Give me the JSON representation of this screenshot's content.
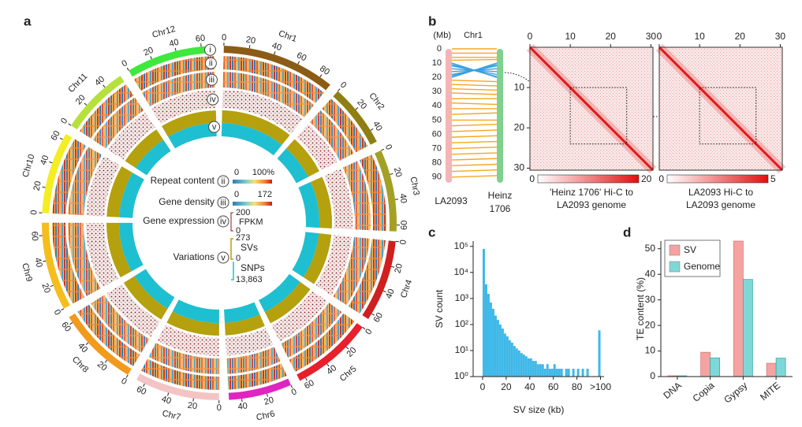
{
  "chart_data": [
    {
      "type": "circos",
      "panel": "a",
      "chromosomes": [
        {
          "name": "Chr1",
          "length": 90,
          "color": "#8c5c16",
          "ticks": [
            0,
            20,
            40,
            60,
            80
          ]
        },
        {
          "name": "Chr2",
          "length": 50,
          "color": "#8f7f12",
          "ticks": [
            0,
            20,
            40
          ]
        },
        {
          "name": "Chr3",
          "length": 65,
          "color": "#a4a026",
          "ticks": [
            0,
            20,
            40,
            60
          ]
        },
        {
          "name": "Chr4",
          "length": 65,
          "color": "#cf1f1f",
          "ticks": [
            0,
            20,
            40,
            60
          ]
        },
        {
          "name": "Chr5",
          "length": 65,
          "color": "#e8202c",
          "ticks": [
            0,
            20,
            40,
            60
          ]
        },
        {
          "name": "Chr6",
          "length": 50,
          "color": "#e024c0",
          "ticks": [
            0,
            20,
            40
          ]
        },
        {
          "name": "Chr7",
          "length": 67,
          "color": "#f4c4c4",
          "ticks": [
            0,
            20,
            40,
            60
          ]
        },
        {
          "name": "Chr8",
          "length": 65,
          "color": "#f29a1c",
          "ticks": [
            0,
            20,
            40,
            60
          ]
        },
        {
          "name": "Chr9",
          "length": 70,
          "color": "#f5be1c",
          "ticks": [
            0,
            20,
            40,
            60
          ]
        },
        {
          "name": "Chr10",
          "length": 65,
          "color": "#f2ee22",
          "ticks": [
            0,
            20,
            40,
            60
          ]
        },
        {
          "name": "Chr11",
          "length": 55,
          "color": "#b6e03c",
          "ticks": [
            0,
            20,
            40
          ]
        },
        {
          "name": "Chr12",
          "length": 70,
          "color": "#3ee83c",
          "ticks": [
            0,
            20,
            40,
            60
          ]
        }
      ],
      "rings": [
        "i",
        "ii",
        "iii",
        "iv",
        "v"
      ],
      "legend": {
        "repeat": {
          "label": "Repeat content",
          "ring": "ii",
          "min": 0,
          "max": {
            "value": 100,
            "label": "100%"
          }
        },
        "genes": {
          "label": "Gene density",
          "ring": "iii",
          "min": 0,
          "max": 172
        },
        "expression": {
          "label": "Gene expression",
          "ring": "iv",
          "min": 0,
          "max": 200,
          "unit": "FPKM"
        },
        "variations": {
          "label": "Variations",
          "ring": "v",
          "svs": {
            "name": "SVs",
            "min": 0,
            "max": 273,
            "color": "#b5a00e"
          },
          "snps": {
            "name": "SNPs",
            "max": {
              "value": 13863,
              "label": "13,863"
            },
            "color": "#1ebfd0"
          }
        }
      }
    },
    {
      "type": "synteny",
      "panel": "b",
      "unit": "(Mb)",
      "title": "Chr1",
      "ylim": [
        0,
        94
      ],
      "yticks": [
        0,
        10,
        20,
        30,
        40,
        50,
        60,
        70,
        80,
        90
      ],
      "left_label": "LA2093",
      "right_label": [
        "Heinz",
        "1706"
      ],
      "left_color": "#f5b5b5",
      "right_color": "#80d090",
      "collinear": {
        "color": "#f5a623",
        "links": [
          [
            0,
            0
          ],
          [
            3,
            3
          ],
          [
            6,
            6
          ],
          [
            8,
            7.5
          ],
          [
            22,
            23
          ],
          [
            25,
            26
          ],
          [
            28,
            29
          ],
          [
            31,
            32
          ],
          [
            35,
            35
          ],
          [
            38,
            39
          ],
          [
            42,
            42
          ],
          [
            46,
            45
          ],
          [
            50,
            50
          ],
          [
            54,
            53
          ],
          [
            58,
            57
          ],
          [
            62,
            61
          ],
          [
            66,
            65
          ],
          [
            70,
            69
          ],
          [
            74,
            73
          ],
          [
            78,
            77
          ],
          [
            82,
            81
          ],
          [
            86,
            85
          ],
          [
            90,
            89
          ]
        ]
      },
      "inverted": {
        "color": "#3aa0e0",
        "links": [
          [
            10,
            20
          ],
          [
            11,
            19.5
          ],
          [
            12,
            18
          ],
          [
            14,
            16
          ],
          [
            16,
            14
          ],
          [
            18,
            12
          ],
          [
            19,
            11
          ],
          [
            20,
            10
          ]
        ]
      }
    },
    {
      "type": "heatmap",
      "xlim": [
        0,
        30.5
      ],
      "xticks": [
        0,
        10,
        20,
        30
      ],
      "yticks": [
        10,
        20,
        30
      ],
      "highlight": [
        10,
        24
      ],
      "colorbar": [
        0,
        20
      ],
      "caption": [
        "'Heinz 1706' Hi-C to",
        "LA2093 genome"
      ]
    },
    {
      "type": "heatmap",
      "xlim": [
        0,
        30.5
      ],
      "xticks": [
        0,
        10,
        20,
        30
      ],
      "highlight": [
        10,
        24
      ],
      "colorbar": [
        0,
        5
      ],
      "caption": [
        "LA2093 Hi-C to",
        "LA2093 genome"
      ]
    },
    {
      "type": "histogram",
      "panel": "c",
      "xlabel": "SV size (kb)",
      "ylabel": "SV count",
      "color": "#3fb8e8",
      "log_y": true,
      "bins": [
        0,
        2,
        4,
        6,
        8,
        10,
        12,
        14,
        16,
        18,
        20,
        22,
        24,
        26,
        28,
        30,
        32,
        34,
        36,
        38,
        40,
        42,
        44,
        46,
        48,
        50,
        52,
        54,
        56,
        58,
        60,
        62,
        64,
        66,
        68,
        70,
        72,
        74,
        76,
        78,
        80,
        82,
        84,
        86,
        88,
        90,
        92,
        94,
        96,
        98,
        100
      ],
      "counts": [
        80000,
        3500,
        1500,
        700,
        400,
        220,
        150,
        100,
        70,
        45,
        35,
        25,
        20,
        15,
        12,
        10,
        8,
        7,
        6,
        5,
        5,
        4,
        4,
        3,
        3,
        3,
        2,
        3,
        2,
        2,
        3,
        2,
        2,
        2,
        null,
        2,
        2,
        null,
        2,
        null,
        2,
        null,
        2,
        null,
        2,
        null,
        null,
        null,
        null,
        60
      ],
      "xlim": [
        -8,
        103
      ],
      "xticks": [
        0,
        20,
        40,
        60,
        80,
        {
          "value": 100,
          "label": ">100"
        }
      ],
      "ylim": [
        1,
        160000
      ],
      "yticks": [
        {
          "value": 1,
          "label": "10⁰"
        },
        {
          "value": 10,
          "label": "10¹"
        },
        {
          "value": 100,
          "label": "10²"
        },
        {
          "value": 1000,
          "label": "10³"
        },
        {
          "value": 10000,
          "label": "10⁴"
        },
        {
          "value": 100000,
          "label": "10⁵"
        }
      ]
    },
    {
      "type": "bar",
      "panel": "d",
      "ylabel": "TE content (%)",
      "categories": [
        "DNA",
        "Copia",
        "Gypsy",
        "MITE"
      ],
      "series": [
        {
          "name": "SV",
          "color": "#f4a3a0",
          "values": [
            0.3,
            9.5,
            53,
            5.2
          ]
        },
        {
          "name": "Genome",
          "color": "#7fd8d8",
          "values": [
            0.3,
            7.3,
            38,
            7.2
          ]
        }
      ],
      "ylim": [
        0,
        53
      ],
      "yticks": [
        0,
        10,
        20,
        30,
        40,
        50
      ]
    }
  ]
}
